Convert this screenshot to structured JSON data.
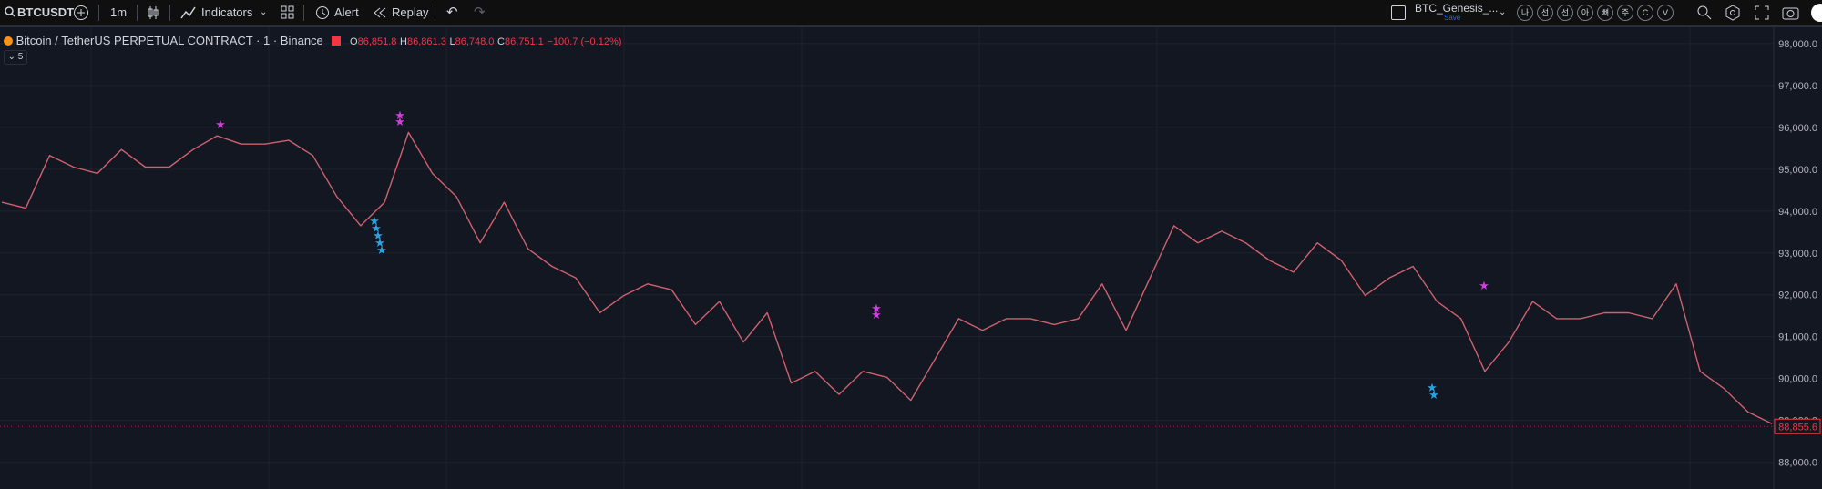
{
  "toolbar": {
    "symbol": "BTCUSDT",
    "interval": "1m",
    "indicators": "Indicators",
    "alert": "Alert",
    "replay": "Replay",
    "layout_name": "BTC_Genesis_...",
    "save": "Save",
    "buttons": [
      "나",
      "선",
      "선",
      "아",
      "뼈",
      "주",
      "C",
      "V"
    ]
  },
  "legend": {
    "title": "Bitcoin / TetherUS PERPETUAL CONTRACT · 1 · Binance",
    "open_label": "O",
    "open": "86,851.8",
    "high_label": "H",
    "high": "86,861.3",
    "low_label": "L",
    "low": "86,748.0",
    "close_label": "C",
    "close": "86,751.1",
    "change": "−100.7 (−0.12%)",
    "collapsed_count": "5"
  },
  "chart": {
    "type": "line",
    "color": "#e05a6a",
    "values": [
      94210,
      94070,
      95330,
      95050,
      94900,
      95470,
      95050,
      95050,
      95470,
      95800,
      95600,
      95600,
      95690,
      95330,
      94350,
      93650,
      94210,
      95880,
      94900,
      94350,
      93240,
      94210,
      93100,
      92680,
      92400,
      91570,
      91980,
      92260,
      92120,
      91290,
      91840,
      90870,
      91570,
      89890,
      90170,
      89620,
      90170,
      90030,
      89480,
      90450,
      91430,
      91150,
      91430,
      91430,
      91290,
      91430,
      92260,
      91150,
      92400,
      93650,
      93240,
      93520,
      93240,
      92820,
      92540,
      93240,
      92820,
      91980,
      92400,
      92680,
      91840,
      91430,
      90170,
      90870,
      91840,
      91430,
      91430,
      91570,
      91570,
      91430,
      92260,
      90170,
      89760,
      89200,
      88920
    ],
    "ylim": [
      87360,
      98390
    ],
    "yticks": [
      {
        "value": 88000,
        "label": "88,000.0"
      },
      {
        "value": 89000,
        "label": "89,000.0"
      },
      {
        "value": 90000,
        "label": "90,000.0"
      },
      {
        "value": 91000,
        "label": "91,000.0"
      },
      {
        "value": 92000,
        "label": "92,000.0"
      },
      {
        "value": 93000,
        "label": "93,000.0"
      },
      {
        "value": 94000,
        "label": "94,000.0"
      },
      {
        "value": 95000,
        "label": "95,000.0"
      },
      {
        "value": 96000,
        "label": "96,000.0"
      },
      {
        "value": 97000,
        "label": "97,000.0"
      },
      {
        "value": 98000,
        "label": "98,000.0"
      }
    ],
    "grid": true,
    "last_price": {
      "value": 88855.6,
      "label": "88,855.6"
    }
  }
}
